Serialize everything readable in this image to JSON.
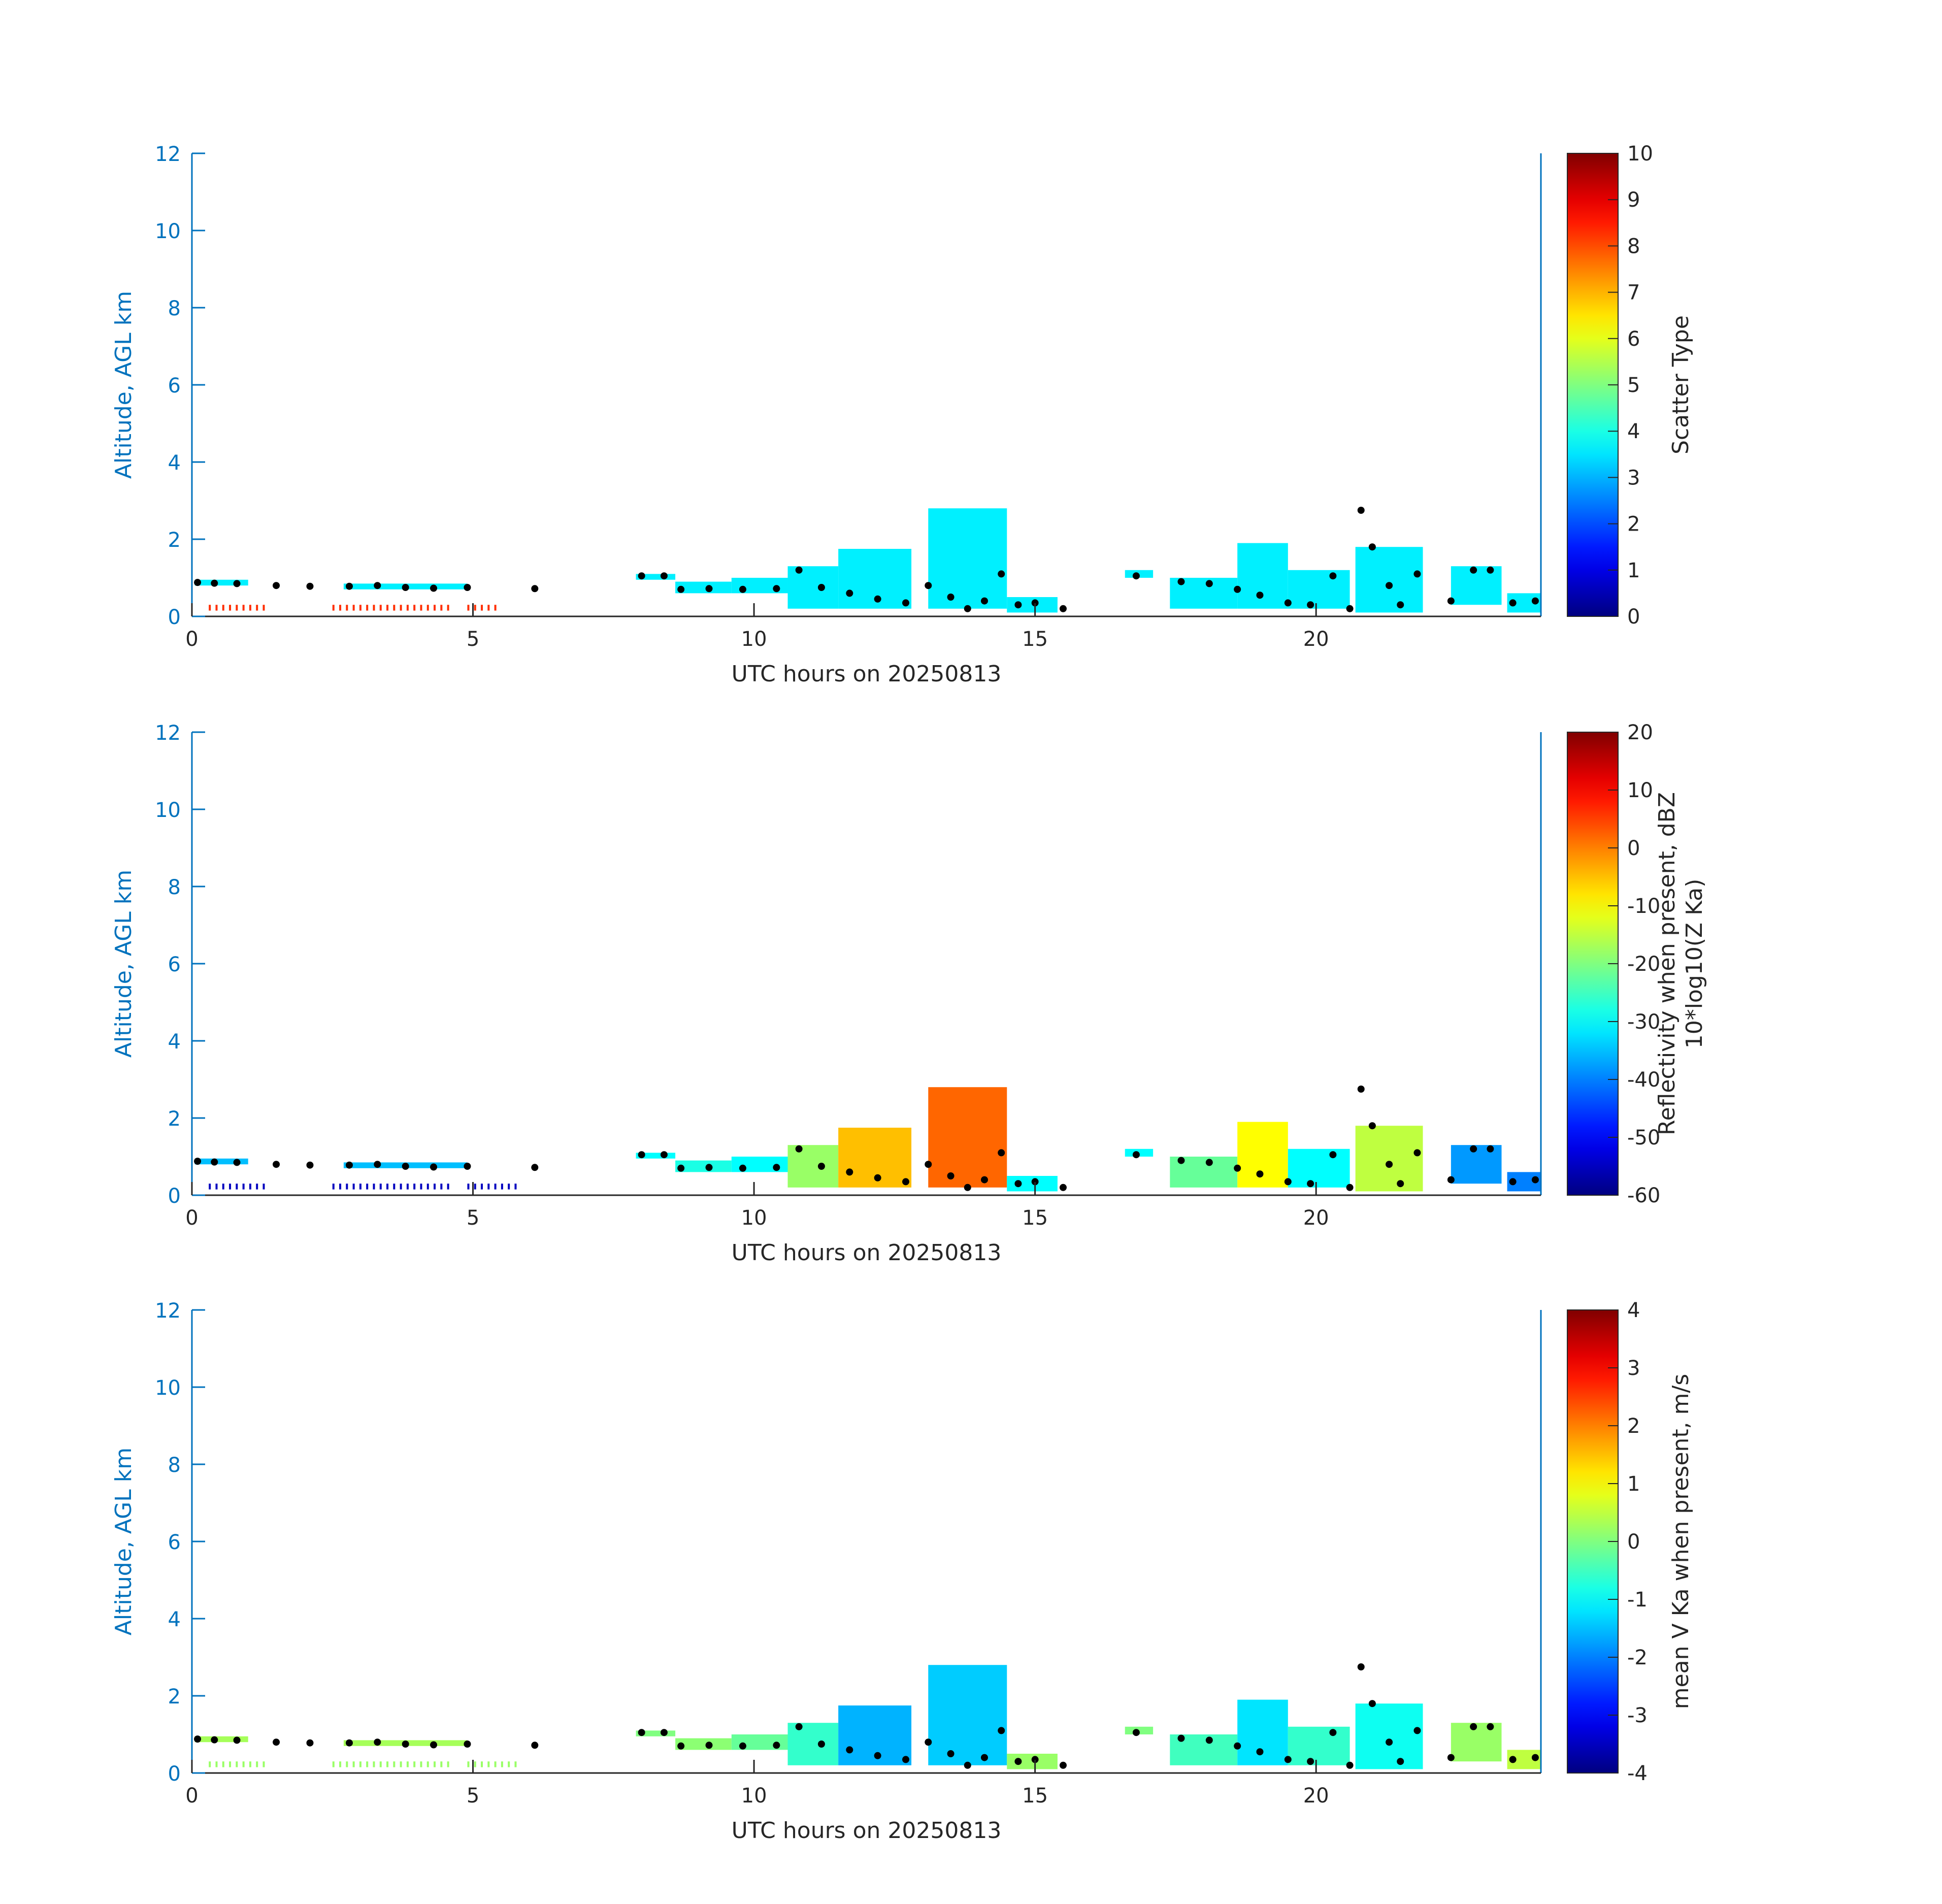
{
  "chart_data": [
    {
      "type": "heatmap",
      "xlabel": "UTC hours on 20250813",
      "ylabel": "Altitude, AGL km",
      "xlim": [
        0,
        24
      ],
      "ylim": [
        0,
        12
      ],
      "xticks": [
        0,
        5,
        10,
        15,
        20
      ],
      "yticks": [
        0,
        2,
        4,
        6,
        8,
        10,
        12
      ],
      "colorbar": {
        "label_lines": [
          "Scatter Type"
        ],
        "range": [
          0,
          10
        ],
        "ticks": [
          "0",
          "1",
          "2",
          "3",
          "4",
          "5",
          "6",
          "7",
          "8",
          "9",
          "10"
        ],
        "colormap": "jet"
      },
      "regions": [
        {
          "x0": 0.05,
          "x1": 1.0,
          "top": 0.95,
          "bottom": 0.8,
          "value": 3.6
        },
        {
          "x0": 2.7,
          "x1": 4.9,
          "top": 0.85,
          "bottom": 0.7,
          "value": 3.6
        },
        {
          "x0": 7.9,
          "x1": 8.6,
          "top": 1.1,
          "bottom": 0.95,
          "value": 3.6
        },
        {
          "x0": 8.6,
          "x1": 9.6,
          "top": 0.9,
          "bottom": 0.6,
          "value": 3.6
        },
        {
          "x0": 9.6,
          "x1": 10.6,
          "top": 1.0,
          "bottom": 0.6,
          "value": 3.6
        },
        {
          "x0": 10.6,
          "x1": 11.5,
          "top": 1.3,
          "bottom": 0.2,
          "value": 3.6
        },
        {
          "x0": 11.5,
          "x1": 12.8,
          "top": 1.75,
          "bottom": 0.2,
          "value": 3.6
        },
        {
          "x0": 13.1,
          "x1": 14.5,
          "top": 2.8,
          "bottom": 0.2,
          "value": 3.6
        },
        {
          "x0": 14.5,
          "x1": 15.4,
          "top": 0.5,
          "bottom": 0.1,
          "value": 3.6
        },
        {
          "x0": 16.6,
          "x1": 17.1,
          "top": 1.2,
          "bottom": 1.0,
          "value": 3.6
        },
        {
          "x0": 17.4,
          "x1": 18.6,
          "top": 1.0,
          "bottom": 0.2,
          "value": 3.6
        },
        {
          "x0": 18.6,
          "x1": 19.5,
          "top": 1.9,
          "bottom": 0.2,
          "value": 3.6
        },
        {
          "x0": 19.5,
          "x1": 20.6,
          "top": 1.2,
          "bottom": 0.2,
          "value": 3.6
        },
        {
          "x0": 20.7,
          "x1": 21.9,
          "top": 1.8,
          "bottom": 0.1,
          "value": 3.6
        },
        {
          "x0": 22.4,
          "x1": 23.3,
          "top": 1.3,
          "bottom": 0.3,
          "value": 3.6
        },
        {
          "x0": 23.4,
          "x1": 24.0,
          "top": 0.6,
          "bottom": 0.1,
          "value": 3.6
        }
      ],
      "ground_marks": [
        {
          "x0": 0.3,
          "x1": 1.3,
          "value": 8.3
        },
        {
          "x0": 2.5,
          "x1": 4.6,
          "value": 8.3
        },
        {
          "x0": 4.9,
          "x1": 5.5,
          "value": 8.3
        }
      ],
      "cloud_base_km": [
        [
          0.1,
          0.88
        ],
        [
          0.4,
          0.86
        ],
        [
          0.8,
          0.85
        ],
        [
          1.5,
          0.8
        ],
        [
          2.1,
          0.78
        ],
        [
          2.8,
          0.78
        ],
        [
          3.3,
          0.8
        ],
        [
          3.8,
          0.75
        ],
        [
          4.3,
          0.73
        ],
        [
          4.9,
          0.75
        ],
        [
          6.1,
          0.72
        ],
        [
          8.0,
          1.05
        ],
        [
          8.4,
          1.05
        ],
        [
          8.7,
          0.7
        ],
        [
          9.2,
          0.72
        ],
        [
          9.8,
          0.7
        ],
        [
          10.4,
          0.72
        ],
        [
          10.8,
          1.2
        ],
        [
          11.2,
          0.75
        ],
        [
          11.7,
          0.6
        ],
        [
          12.2,
          0.45
        ],
        [
          12.7,
          0.35
        ],
        [
          13.1,
          0.8
        ],
        [
          13.5,
          0.5
        ],
        [
          13.8,
          0.2
        ],
        [
          14.1,
          0.4
        ],
        [
          14.4,
          1.1
        ],
        [
          14.7,
          0.3
        ],
        [
          15.0,
          0.35
        ],
        [
          15.5,
          0.2
        ],
        [
          16.8,
          1.05
        ],
        [
          17.6,
          0.9
        ],
        [
          18.1,
          0.85
        ],
        [
          18.6,
          0.7
        ],
        [
          19.0,
          0.55
        ],
        [
          19.5,
          0.35
        ],
        [
          19.9,
          0.3
        ],
        [
          20.3,
          1.05
        ],
        [
          20.6,
          0.2
        ],
        [
          20.8,
          2.75
        ],
        [
          21.0,
          1.8
        ],
        [
          21.3,
          0.8
        ],
        [
          21.5,
          0.3
        ],
        [
          21.8,
          1.1
        ],
        [
          22.4,
          0.4
        ],
        [
          22.8,
          1.2
        ],
        [
          23.1,
          1.2
        ],
        [
          23.5,
          0.35
        ],
        [
          23.9,
          0.4
        ]
      ]
    },
    {
      "type": "heatmap",
      "xlabel": "UTC hours on 20250813",
      "ylabel": "Altitude, AGL km",
      "xlim": [
        0,
        24
      ],
      "ylim": [
        0,
        12
      ],
      "xticks": [
        0,
        5,
        10,
        15,
        20
      ],
      "yticks": [
        0,
        2,
        4,
        6,
        8,
        10,
        12
      ],
      "colorbar": {
        "label_lines": [
          "Reflectivity when present, dBZ",
          "10*log10(Z Ka)"
        ],
        "range": [
          -60,
          20
        ],
        "ticks": [
          "-60",
          "-50",
          "-40",
          "-30",
          "-20",
          "-10",
          "0",
          "10",
          "20"
        ],
        "colormap": "jet"
      },
      "regions": [
        {
          "x0": 0.05,
          "x1": 1.0,
          "top": 0.95,
          "bottom": 0.8,
          "value": -35
        },
        {
          "x0": 2.7,
          "x1": 4.9,
          "top": 0.85,
          "bottom": 0.7,
          "value": -35
        },
        {
          "x0": 7.9,
          "x1": 8.6,
          "top": 1.1,
          "bottom": 0.95,
          "value": -30
        },
        {
          "x0": 8.6,
          "x1": 9.6,
          "top": 0.9,
          "bottom": 0.6,
          "value": -28
        },
        {
          "x0": 9.6,
          "x1": 10.6,
          "top": 1.0,
          "bottom": 0.6,
          "value": -30
        },
        {
          "x0": 10.6,
          "x1": 11.5,
          "top": 1.3,
          "bottom": 0.2,
          "value": -18
        },
        {
          "x0": 11.5,
          "x1": 12.8,
          "top": 1.75,
          "bottom": 0.2,
          "value": -5
        },
        {
          "x0": 13.1,
          "x1": 14.5,
          "top": 2.8,
          "bottom": 0.2,
          "value": 2
        },
        {
          "x0": 14.5,
          "x1": 15.4,
          "top": 0.5,
          "bottom": 0.1,
          "value": -30
        },
        {
          "x0": 16.6,
          "x1": 17.1,
          "top": 1.2,
          "bottom": 1.0,
          "value": -30
        },
        {
          "x0": 17.4,
          "x1": 18.6,
          "top": 1.0,
          "bottom": 0.2,
          "value": -22
        },
        {
          "x0": 18.6,
          "x1": 19.5,
          "top": 1.9,
          "bottom": 0.2,
          "value": -10
        },
        {
          "x0": 19.5,
          "x1": 20.6,
          "top": 1.2,
          "bottom": 0.2,
          "value": -30
        },
        {
          "x0": 20.7,
          "x1": 21.9,
          "top": 1.8,
          "bottom": 0.1,
          "value": -15
        },
        {
          "x0": 22.4,
          "x1": 23.3,
          "top": 1.3,
          "bottom": 0.3,
          "value": -38
        },
        {
          "x0": 23.4,
          "x1": 24.0,
          "top": 0.6,
          "bottom": 0.1,
          "value": -40
        }
      ],
      "ground_marks": [
        {
          "x0": 0.3,
          "x1": 1.3,
          "value": -55
        },
        {
          "x0": 2.5,
          "x1": 4.6,
          "value": -55
        },
        {
          "x0": 4.9,
          "x1": 5.8,
          "value": -55
        }
      ],
      "cloud_base_km": [
        [
          0.1,
          0.88
        ],
        [
          0.4,
          0.86
        ],
        [
          0.8,
          0.85
        ],
        [
          1.5,
          0.8
        ],
        [
          2.1,
          0.78
        ],
        [
          2.8,
          0.78
        ],
        [
          3.3,
          0.8
        ],
        [
          3.8,
          0.75
        ],
        [
          4.3,
          0.73
        ],
        [
          4.9,
          0.75
        ],
        [
          6.1,
          0.72
        ],
        [
          8.0,
          1.05
        ],
        [
          8.4,
          1.05
        ],
        [
          8.7,
          0.7
        ],
        [
          9.2,
          0.72
        ],
        [
          9.8,
          0.7
        ],
        [
          10.4,
          0.72
        ],
        [
          10.8,
          1.2
        ],
        [
          11.2,
          0.75
        ],
        [
          11.7,
          0.6
        ],
        [
          12.2,
          0.45
        ],
        [
          12.7,
          0.35
        ],
        [
          13.1,
          0.8
        ],
        [
          13.5,
          0.5
        ],
        [
          13.8,
          0.2
        ],
        [
          14.1,
          0.4
        ],
        [
          14.4,
          1.1
        ],
        [
          14.7,
          0.3
        ],
        [
          15.0,
          0.35
        ],
        [
          15.5,
          0.2
        ],
        [
          16.8,
          1.05
        ],
        [
          17.6,
          0.9
        ],
        [
          18.1,
          0.85
        ],
        [
          18.6,
          0.7
        ],
        [
          19.0,
          0.55
        ],
        [
          19.5,
          0.35
        ],
        [
          19.9,
          0.3
        ],
        [
          20.3,
          1.05
        ],
        [
          20.6,
          0.2
        ],
        [
          20.8,
          2.75
        ],
        [
          21.0,
          1.8
        ],
        [
          21.3,
          0.8
        ],
        [
          21.5,
          0.3
        ],
        [
          21.8,
          1.1
        ],
        [
          22.4,
          0.4
        ],
        [
          22.8,
          1.2
        ],
        [
          23.1,
          1.2
        ],
        [
          23.5,
          0.35
        ],
        [
          23.9,
          0.4
        ]
      ]
    },
    {
      "type": "heatmap",
      "xlabel": "UTC hours on 20250813",
      "ylabel": "Altitude, AGL km",
      "xlim": [
        0,
        24
      ],
      "ylim": [
        0,
        12
      ],
      "xticks": [
        0,
        5,
        10,
        15,
        20
      ],
      "yticks": [
        0,
        2,
        4,
        6,
        8,
        10,
        12
      ],
      "colorbar": {
        "label_lines": [
          "mean V Ka when present, m/s"
        ],
        "range": [
          -4,
          4
        ],
        "ticks": [
          "-4",
          "-3",
          "-2",
          "-1",
          "0",
          "1",
          "2",
          "3",
          "4"
        ],
        "colormap": "jet"
      },
      "regions": [
        {
          "x0": 0.05,
          "x1": 1.0,
          "top": 0.95,
          "bottom": 0.8,
          "value": 0.3
        },
        {
          "x0": 2.7,
          "x1": 4.9,
          "top": 0.85,
          "bottom": 0.7,
          "value": 0.3
        },
        {
          "x0": 7.9,
          "x1": 8.6,
          "top": 1.1,
          "bottom": 0.95,
          "value": 0.0
        },
        {
          "x0": 8.6,
          "x1": 9.6,
          "top": 0.9,
          "bottom": 0.6,
          "value": 0.1
        },
        {
          "x0": 9.6,
          "x1": 10.6,
          "top": 1.0,
          "bottom": 0.6,
          "value": -0.2
        },
        {
          "x0": 10.6,
          "x1": 11.5,
          "top": 1.3,
          "bottom": 0.2,
          "value": -0.6
        },
        {
          "x0": 11.5,
          "x1": 12.8,
          "top": 1.75,
          "bottom": 0.2,
          "value": -1.6
        },
        {
          "x0": 13.1,
          "x1": 14.5,
          "top": 2.8,
          "bottom": 0.2,
          "value": -1.4
        },
        {
          "x0": 14.5,
          "x1": 15.4,
          "top": 0.5,
          "bottom": 0.1,
          "value": 0.2
        },
        {
          "x0": 16.6,
          "x1": 17.1,
          "top": 1.2,
          "bottom": 1.0,
          "value": 0.0
        },
        {
          "x0": 17.4,
          "x1": 18.6,
          "top": 1.0,
          "bottom": 0.2,
          "value": -0.5
        },
        {
          "x0": 18.6,
          "x1": 19.5,
          "top": 1.9,
          "bottom": 0.2,
          "value": -1.2
        },
        {
          "x0": 19.5,
          "x1": 20.6,
          "top": 1.2,
          "bottom": 0.2,
          "value": -0.6
        },
        {
          "x0": 20.7,
          "x1": 21.9,
          "top": 1.8,
          "bottom": 0.1,
          "value": -0.9
        },
        {
          "x0": 22.4,
          "x1": 23.3,
          "top": 1.3,
          "bottom": 0.3,
          "value": 0.2
        },
        {
          "x0": 23.4,
          "x1": 24.0,
          "top": 0.6,
          "bottom": 0.1,
          "value": 0.5
        }
      ],
      "ground_marks": [
        {
          "x0": 0.3,
          "x1": 1.3,
          "value": 0.2
        },
        {
          "x0": 2.5,
          "x1": 4.6,
          "value": 0.2
        },
        {
          "x0": 4.9,
          "x1": 5.8,
          "value": 0.2
        }
      ],
      "cloud_base_km": [
        [
          0.1,
          0.88
        ],
        [
          0.4,
          0.86
        ],
        [
          0.8,
          0.85
        ],
        [
          1.5,
          0.8
        ],
        [
          2.1,
          0.78
        ],
        [
          2.8,
          0.78
        ],
        [
          3.3,
          0.8
        ],
        [
          3.8,
          0.75
        ],
        [
          4.3,
          0.73
        ],
        [
          4.9,
          0.75
        ],
        [
          6.1,
          0.72
        ],
        [
          8.0,
          1.05
        ],
        [
          8.4,
          1.05
        ],
        [
          8.7,
          0.7
        ],
        [
          9.2,
          0.72
        ],
        [
          9.8,
          0.7
        ],
        [
          10.4,
          0.72
        ],
        [
          10.8,
          1.2
        ],
        [
          11.2,
          0.75
        ],
        [
          11.7,
          0.6
        ],
        [
          12.2,
          0.45
        ],
        [
          12.7,
          0.35
        ],
        [
          13.1,
          0.8
        ],
        [
          13.5,
          0.5
        ],
        [
          13.8,
          0.2
        ],
        [
          14.1,
          0.4
        ],
        [
          14.4,
          1.1
        ],
        [
          14.7,
          0.3
        ],
        [
          15.0,
          0.35
        ],
        [
          15.5,
          0.2
        ],
        [
          16.8,
          1.05
        ],
        [
          17.6,
          0.9
        ],
        [
          18.1,
          0.85
        ],
        [
          18.6,
          0.7
        ],
        [
          19.0,
          0.55
        ],
        [
          19.5,
          0.35
        ],
        [
          19.9,
          0.3
        ],
        [
          20.3,
          1.05
        ],
        [
          20.6,
          0.2
        ],
        [
          20.8,
          2.75
        ],
        [
          21.0,
          1.8
        ],
        [
          21.3,
          0.8
        ],
        [
          21.5,
          0.3
        ],
        [
          21.8,
          1.1
        ],
        [
          22.4,
          0.4
        ],
        [
          22.8,
          1.2
        ],
        [
          23.1,
          1.2
        ],
        [
          23.5,
          0.35
        ],
        [
          23.9,
          0.4
        ]
      ]
    }
  ],
  "colors": {
    "axis_blue": "#0072bd",
    "text_dark": "#262626",
    "marker": "#000000"
  }
}
